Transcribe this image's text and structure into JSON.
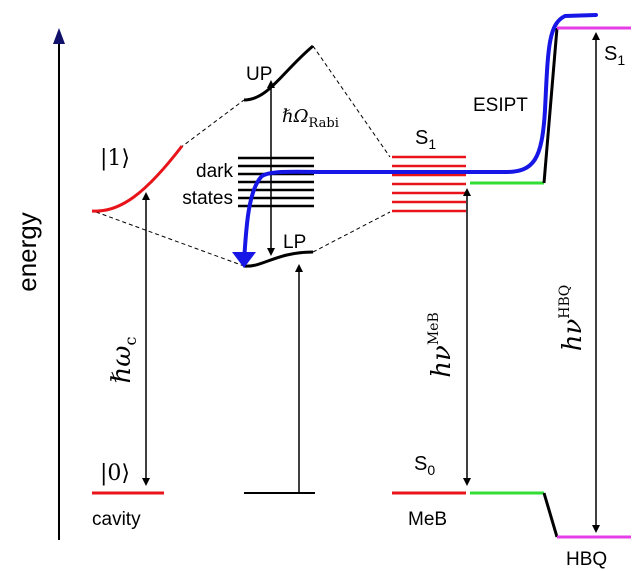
{
  "axis": {
    "label": "energy"
  },
  "labels": {
    "ket1": "|1⟩",
    "ket0": "|0⟩",
    "cavity": "cavity",
    "up": "UP",
    "lp": "LP",
    "dark1": "dark",
    "dark2": "states",
    "rabi_main": "ℏΩ",
    "rabi_sub": "Rabi",
    "hw_main": "ℏω",
    "hw_sub": "c",
    "meb_s1_main": "S",
    "meb_s1_sub": "1",
    "meb_s0_main": "S",
    "meb_s0_sub": "0",
    "meb": "MeB",
    "esipt": "ESIPT",
    "hbq_s1_main": "S",
    "hbq_s1_sub": "1",
    "hbq": "HBQ",
    "hnu_meb_main": "hν",
    "hnu_meb_sup": "MeB",
    "hnu_hbq_main": "hν",
    "hnu_hbq_sup": "HBQ"
  },
  "colors": {
    "cavity_level": "#e8141a",
    "meb_level": "#e8141a",
    "hbq_green": "#33dd33",
    "hbq_magenta": "#e63ee6",
    "relaxation_path": "#1616e6",
    "axis_arrow": "#10106a",
    "black": "#000000"
  },
  "diagram_elements": {
    "dark_state_count": 7,
    "meb_s1_sublevel_count": 7
  }
}
